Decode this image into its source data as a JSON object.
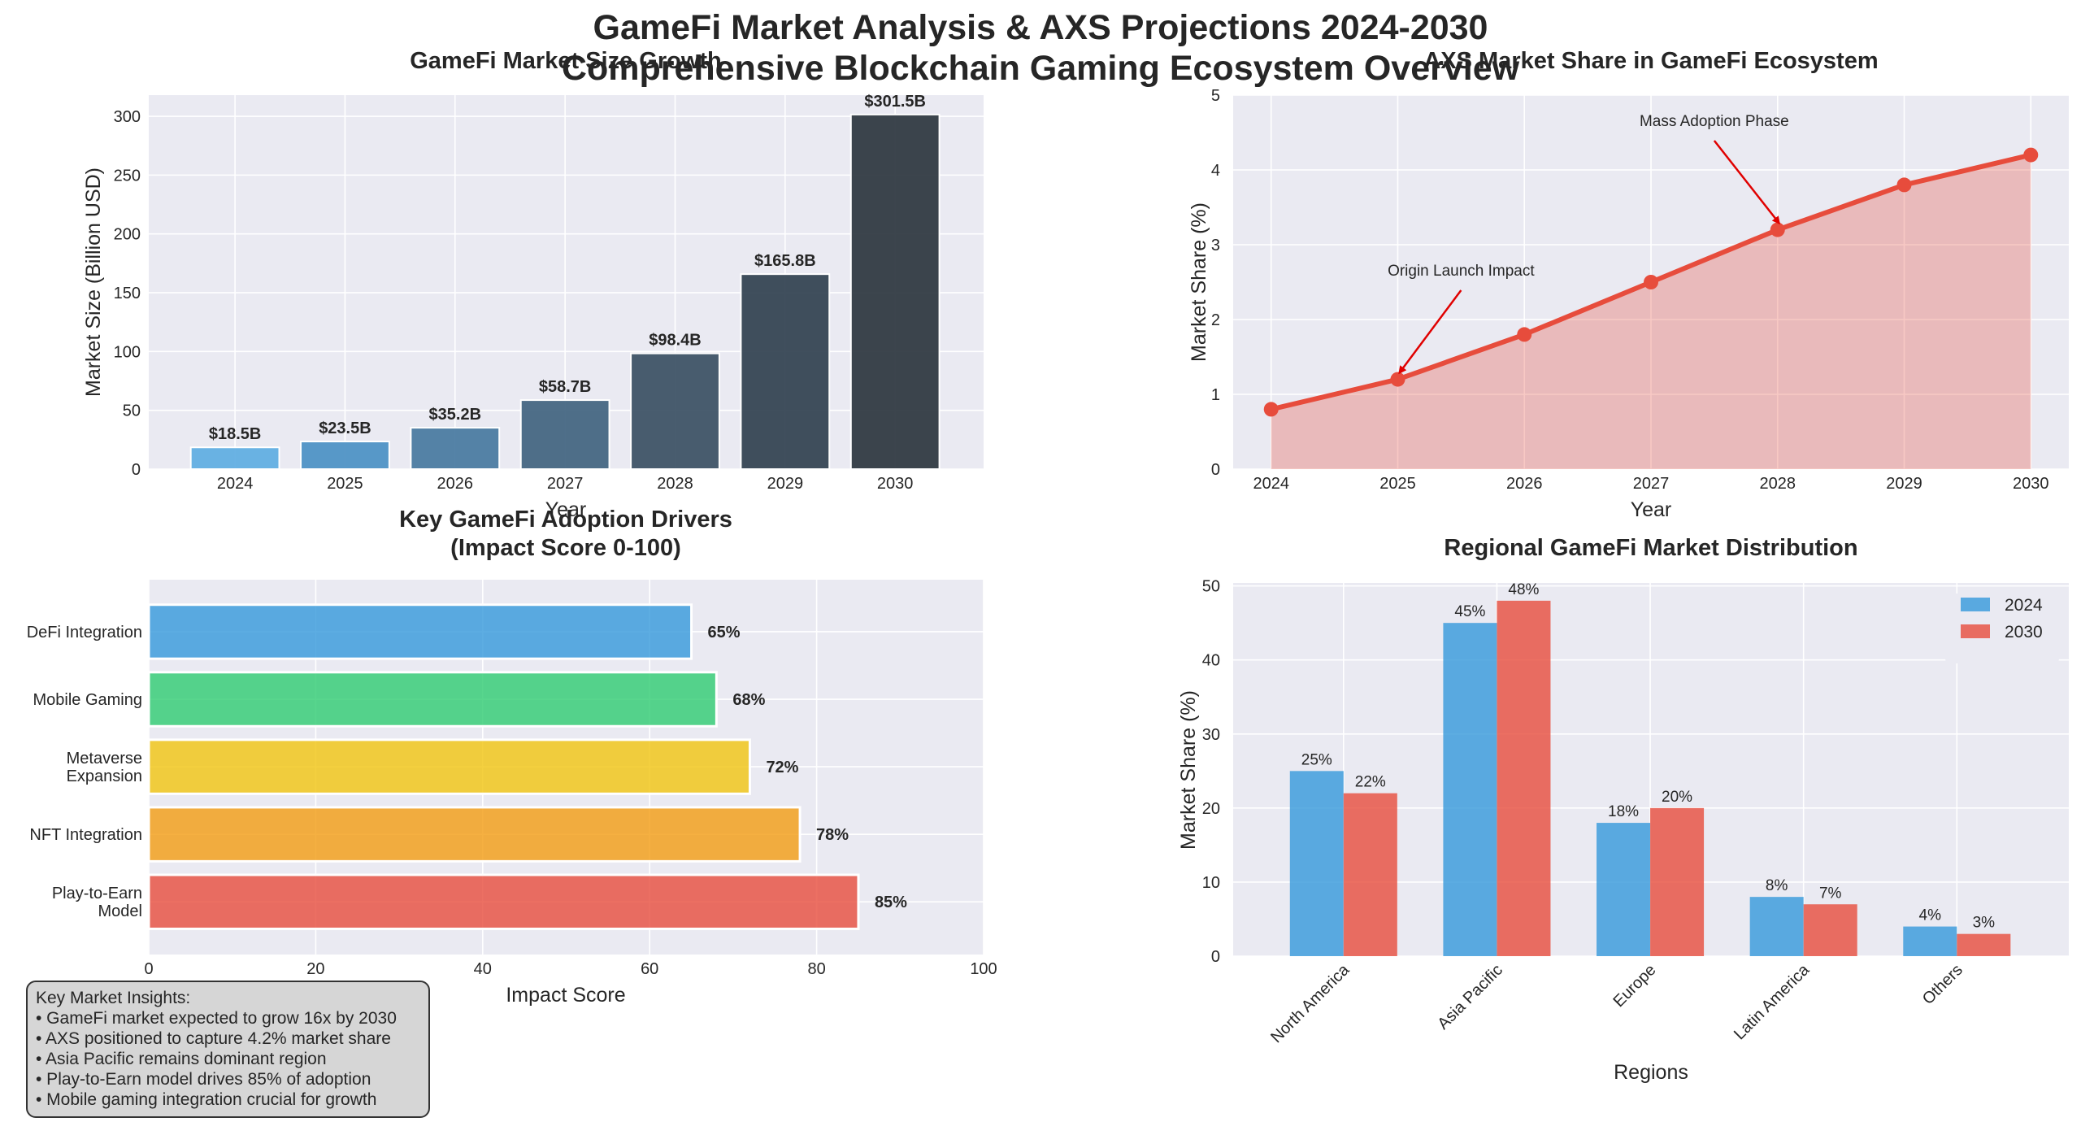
{
  "figure": {
    "title_line1": "GameFi Market Analysis & AXS Projections 2024-2030",
    "title_line2": "Comprehensive Blockchain Gaming Ecosystem Overview"
  },
  "colors": {
    "plot_bg": "#eaeaf2",
    "blue": "#3498db",
    "red": "#e74c3c",
    "green": "#2ecc71",
    "yellow": "#f1c40f",
    "orange": "#f39c12",
    "market_bar_colors": [
      "#5dade2",
      "#4a90c4",
      "#4678a0",
      "#40637f",
      "#394f63",
      "#30404f",
      "#2b353e"
    ]
  },
  "chart_data": [
    {
      "id": "market_size",
      "type": "bar",
      "title": "GameFi Market Size Growth",
      "xlabel": "Year",
      "ylabel": "Market Size (Billion USD)",
      "categories": [
        "2024",
        "2025",
        "2026",
        "2027",
        "2028",
        "2029",
        "2030"
      ],
      "values": [
        18.5,
        23.5,
        35.2,
        58.7,
        98.4,
        165.8,
        301.5
      ],
      "labels": [
        "$18.5B",
        "$23.5B",
        "$35.2B",
        "$58.7B",
        "$98.4B",
        "$165.8B",
        "$301.5B"
      ],
      "ylim": [
        0,
        318
      ],
      "yticks": [
        0,
        50,
        100,
        150,
        200,
        250,
        300
      ]
    },
    {
      "id": "axs_share",
      "type": "area",
      "title": "AXS Market Share in GameFi Ecosystem",
      "xlabel": "Year",
      "ylabel": "Market Share (%)",
      "x": [
        2024,
        2025,
        2026,
        2027,
        2028,
        2029,
        2030
      ],
      "values": [
        0.8,
        1.2,
        1.8,
        2.5,
        3.2,
        3.8,
        4.2
      ],
      "ylim": [
        0,
        5
      ],
      "yticks": [
        0,
        1,
        2,
        3,
        4,
        5
      ],
      "annotations": [
        {
          "text": "Origin Launch Impact",
          "x": 2025,
          "y": 1.2,
          "text_x": 2025.5,
          "text_y": 2.5
        },
        {
          "text": "Mass Adoption Phase",
          "x": 2028,
          "y": 3.2,
          "text_x": 2027.5,
          "text_y": 4.5
        }
      ]
    },
    {
      "id": "drivers",
      "type": "bar",
      "orientation": "horizontal",
      "title_line1": "Key GameFi Adoption Drivers",
      "title_line2": "(Impact Score 0-100)",
      "xlabel": "Impact Score",
      "categories": [
        [
          "Play-to-Earn",
          "Model"
        ],
        [
          "NFT Integration"
        ],
        [
          "Metaverse",
          "Expansion"
        ],
        [
          "Mobile Gaming"
        ],
        [
          "DeFi Integration"
        ]
      ],
      "values": [
        85,
        78,
        72,
        68,
        65
      ],
      "labels": [
        "85%",
        "78%",
        "72%",
        "68%",
        "65%"
      ],
      "xlim": [
        0,
        100
      ],
      "xticks": [
        0,
        20,
        40,
        60,
        80,
        100
      ]
    },
    {
      "id": "regional",
      "type": "bar",
      "title": "Regional GameFi Market Distribution",
      "xlabel": "Regions",
      "ylabel": "Market Share (%)",
      "categories": [
        "North America",
        "Asia Pacific",
        "Europe",
        "Latin America",
        "Others"
      ],
      "series": [
        {
          "name": "2024",
          "values": [
            25,
            45,
            18,
            8,
            4
          ],
          "labels": [
            "25%",
            "45%",
            "18%",
            "8%",
            "4%"
          ]
        },
        {
          "name": "2030",
          "values": [
            22,
            48,
            20,
            7,
            3
          ],
          "labels": [
            "22%",
            "48%",
            "20%",
            "7%",
            "3%"
          ]
        }
      ],
      "ylim": [
        0,
        50.4
      ],
      "yticks": [
        0,
        10,
        20,
        30,
        40,
        50
      ],
      "legend": "top-right"
    }
  ],
  "insights": {
    "heading": "Key Market Insights:",
    "items": [
      "• GameFi market expected to grow 16x by 2030",
      "• AXS positioned to capture 4.2% market share",
      "• Asia Pacific remains dominant region",
      "• Play-to-Earn model drives 85% of adoption",
      "• Mobile gaming integration crucial for growth"
    ]
  }
}
